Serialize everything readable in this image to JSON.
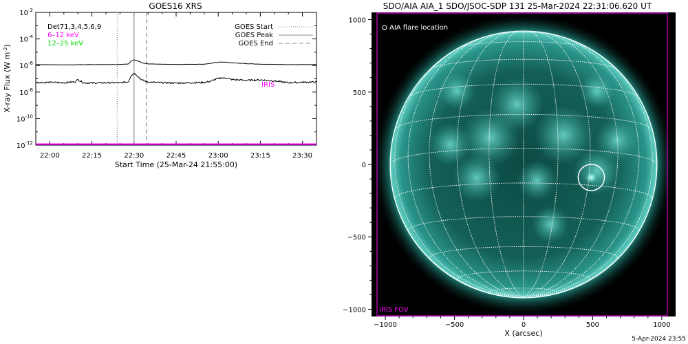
{
  "chart_data": [
    {
      "type": "line",
      "title": "GOES16 XRS",
      "xlabel": "Start Time (25-Mar-24 21:55:00)",
      "ylabel_main": "X-ray Flux (W m",
      "ylabel_exp": "-2",
      "ylabel_close": ")",
      "x_unit": "minutes since start time",
      "xlim": [
        0,
        100
      ],
      "y_scale": "log",
      "ylim_exp": [
        -12,
        -2
      ],
      "yticks": [
        {
          "base": "10",
          "exp": "-2",
          "value_exp": -2
        },
        {
          "base": "10",
          "exp": "-4",
          "value_exp": -4
        },
        {
          "base": "10",
          "exp": "-6",
          "value_exp": -6
        },
        {
          "base": "10",
          "exp": "-8",
          "value_exp": -8
        },
        {
          "base": "10",
          "exp": "-10",
          "value_exp": -10
        },
        {
          "base": "10",
          "exp": "-12",
          "value_exp": -12
        }
      ],
      "xticks": [
        {
          "label": "22:00",
          "value": 5
        },
        {
          "label": "22:15",
          "value": 20
        },
        {
          "label": "22:30",
          "value": 35
        },
        {
          "label": "22:45",
          "value": 50
        },
        {
          "label": "23:00",
          "value": 65
        },
        {
          "label": "23:15",
          "value": 80
        },
        {
          "label": "23:30",
          "value": 95
        }
      ],
      "legend_left": [
        {
          "label": "Det71,3,4,5,6,9",
          "color": "#000000"
        },
        {
          "label": "6–12 keV",
          "color": "#ff00ff"
        },
        {
          "label": "12–25 keV",
          "color": "#00dd00"
        }
      ],
      "legend_right": [
        {
          "label": "GOES Start",
          "style": "dotted"
        },
        {
          "label": "GOES Peak",
          "style": "solid"
        },
        {
          "label": "GOES End",
          "style": "dashed"
        }
      ],
      "event_lines": [
        {
          "name": "GOES Start",
          "x": 29,
          "style": "dotted"
        },
        {
          "name": "GOES Peak",
          "x": 35,
          "style": "solid"
        },
        {
          "name": "GOES End",
          "x": 39.5,
          "style": "dashed"
        }
      ],
      "series": [
        {
          "color": "#000000",
          "note": "long channel, log10 flux",
          "x": [
            0,
            5,
            10,
            15,
            20,
            25,
            30,
            33,
            34,
            35,
            36,
            37,
            38,
            40,
            43,
            46,
            50,
            55,
            60,
            62,
            64,
            66,
            68,
            70,
            75,
            80,
            85,
            90,
            95,
            100
          ],
          "y": [
            -5.93,
            -5.94,
            -5.95,
            -5.94,
            -5.93,
            -5.93,
            -5.92,
            -5.88,
            -5.66,
            -5.58,
            -5.62,
            -5.7,
            -5.8,
            -5.88,
            -5.9,
            -5.91,
            -5.92,
            -5.91,
            -5.9,
            -5.85,
            -5.78,
            -5.74,
            -5.76,
            -5.8,
            -5.86,
            -5.9,
            -5.92,
            -5.93,
            -5.93,
            -5.93
          ]
        },
        {
          "color": "#000000",
          "note": "short channel, log10 flux",
          "x": [
            0,
            5,
            10,
            14,
            15,
            16,
            17,
            20,
            25,
            30,
            33,
            34,
            35,
            36,
            37,
            38,
            40,
            43,
            46,
            50,
            55,
            60,
            62,
            64,
            66,
            68,
            70,
            75,
            80,
            85,
            90,
            95,
            100
          ],
          "y": [
            -7.28,
            -7.27,
            -7.3,
            -7.22,
            -7.06,
            -7.18,
            -7.3,
            -7.32,
            -7.3,
            -7.3,
            -7.22,
            -6.72,
            -6.58,
            -6.72,
            -6.95,
            -7.12,
            -7.24,
            -7.28,
            -7.3,
            -7.32,
            -7.3,
            -7.28,
            -7.2,
            -7.04,
            -6.94,
            -6.96,
            -7.06,
            -7.12,
            -7.08,
            -7.16,
            -7.3,
            -7.26,
            -7.24
          ]
        },
        {
          "color": "#ff00ff",
          "x": [
            0,
            100
          ],
          "y": [
            -11.92,
            -11.92
          ]
        }
      ],
      "annotation": {
        "text": "IRIS",
        "color": "#ff00ff",
        "x": 77,
        "y_exp": -7.4
      },
      "grid": false
    },
    {
      "type": "image",
      "title": "SDO/AIA AIA_1 SDO/JSOC-SDP 131 25-Mar-2024 22:31:06.620 UT",
      "xlabel": "X (arcsec)",
      "xlim": [
        -1100,
        1100
      ],
      "ylim": [
        -1050,
        1050
      ],
      "xticks": [
        {
          "label": "−1000",
          "value": -1000
        },
        {
          "label": "−500",
          "value": -500
        },
        {
          "label": "0",
          "value": 0
        },
        {
          "label": "500",
          "value": 500
        },
        {
          "label": "1000",
          "value": 1000
        }
      ],
      "yticks": [
        {
          "label": "1000",
          "value": 1000
        },
        {
          "label": "500",
          "value": 500
        },
        {
          "label": "0",
          "value": 0
        },
        {
          "label": "−500",
          "value": -500
        },
        {
          "label": "−1000",
          "value": -1000
        }
      ],
      "solar_radius": 965,
      "legend": {
        "label": "AIA flare location"
      },
      "flare_location": {
        "x": 490,
        "y": -90,
        "radius": 95
      },
      "fov": {
        "label": "IRIS FOV",
        "color": "#ff00ff",
        "x": [
          -1060,
          1040
        ],
        "y": [
          -1045,
          1045
        ]
      },
      "grid": true
    }
  ],
  "footer": {
    "date": "5-Apr-2024 23:55"
  }
}
